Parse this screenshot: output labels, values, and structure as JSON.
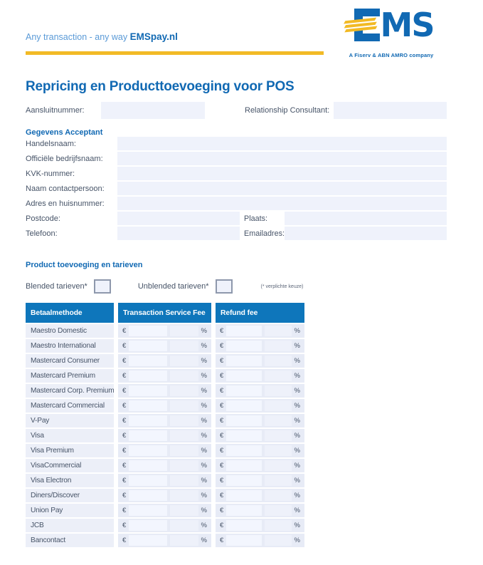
{
  "brand": {
    "slogan_text": "Any transaction - any way",
    "slogan_brand": "EMSpay.nl",
    "logo_text": "EMS",
    "logo_ms": "MS",
    "tagline": "A Fiserv & ABN AMRO company"
  },
  "title": "Repricing en Producttoevoeging voor POS",
  "top_row": {
    "aansluitnummer_label": "Aansluitnummer:",
    "consultant_label": "Relationship Consultant:"
  },
  "acceptant": {
    "heading": "Gegevens Acceptant",
    "rows": [
      {
        "name": "handelsnaam",
        "label": "Handelsnaam:",
        "type": "full"
      },
      {
        "name": "officiele-bedrijfsnaam",
        "label": "Officiële bedrijfsnaam:",
        "type": "full"
      },
      {
        "name": "kvk-nummer",
        "label": "KVK-nummer:",
        "type": "full"
      },
      {
        "name": "naam-contactpersoon",
        "label": "Naam contactpersoon:",
        "type": "full"
      },
      {
        "name": "adres-en-huisnummer",
        "label": "Adres en huisnummer:",
        "type": "full"
      },
      {
        "name": "postcode",
        "label": "Postcode:",
        "type": "split",
        "name2": "plaats",
        "label2": "Plaats:"
      },
      {
        "name": "telefoon",
        "label": "Telefoon:",
        "type": "split",
        "name2": "emailadres",
        "label2": "Emailadres:"
      }
    ]
  },
  "product": {
    "heading": "Product toevoeging en tarieven",
    "blended_label": "Blended tarieven*",
    "unblended_label": "Unblended tarieven*",
    "note": "(* verplichte keuze)"
  },
  "table": {
    "headers": [
      {
        "name": "betaalmethode",
        "label": "Betaalmethode"
      },
      {
        "name": "transaction-service-fee",
        "label": "Transaction Service Fee"
      },
      {
        "name": "refund-fee",
        "label": "Refund fee"
      }
    ],
    "currency_symbol": "€",
    "percent_symbol": "%",
    "rows": [
      "Maestro Domestic",
      "Maestro International",
      "Mastercard Consumer",
      "Mastercard Premium",
      "Mastercard Corp. Premium",
      "Mastercard Commercial",
      "V-Pay",
      "Visa",
      "Visa Premium",
      "VisaCommercial",
      "Visa Electron",
      "Diners/Discover",
      "Union Pay",
      "JCB",
      "Bancontact"
    ]
  },
  "colors": {
    "brand_blue": "#1169b3",
    "light_blue": "#5a9ad7",
    "accent_yellow": "#f2ba25",
    "table_header_blue": "#0e76bb",
    "field_bg": "#eff2fb",
    "row_bg": "#eceff8",
    "fee_cell_bg": "#e7ebf6",
    "label_text": "#475468"
  }
}
